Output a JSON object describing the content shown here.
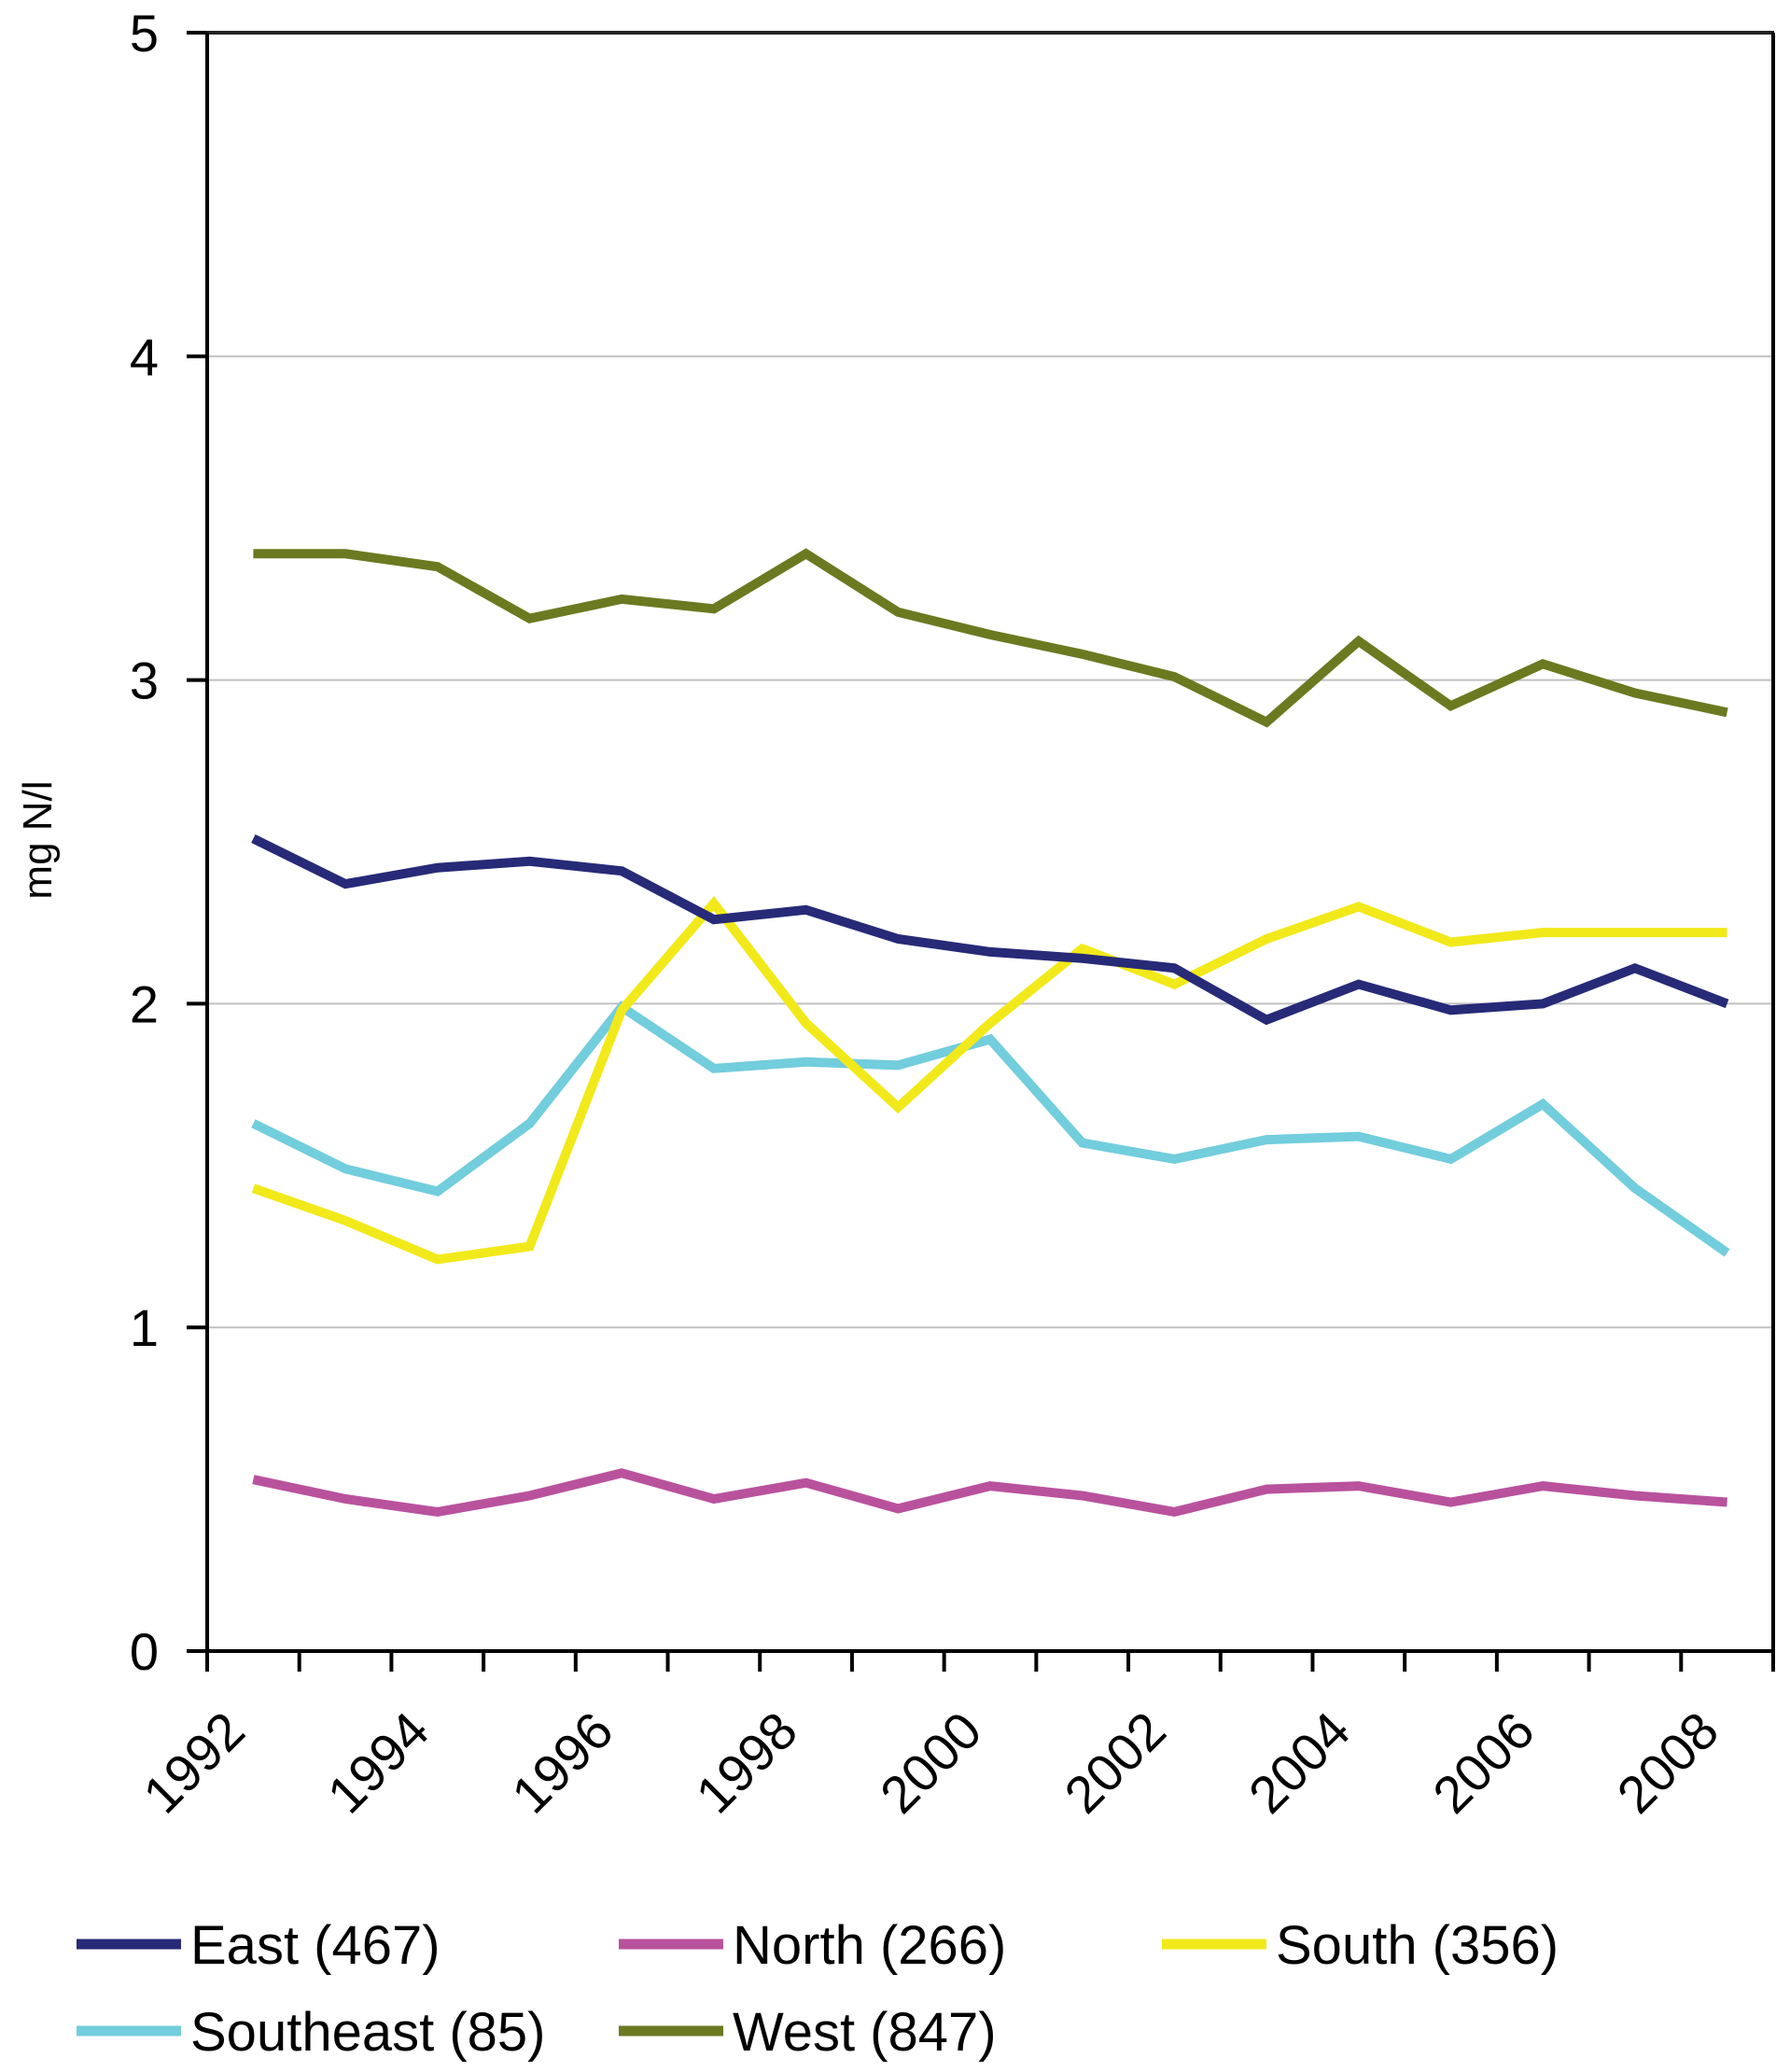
{
  "chart_data": {
    "type": "line",
    "title": "",
    "xlabel": "",
    "ylabel": "mg N/l",
    "ylim": [
      0,
      5
    ],
    "yticks": [
      0,
      1,
      2,
      3,
      4,
      5
    ],
    "ytick_labels": [
      "0",
      "1",
      "2",
      "3",
      "4",
      "5"
    ],
    "grid": "horizontal",
    "x": [
      1992,
      1993,
      1994,
      1995,
      1996,
      1997,
      1998,
      1999,
      2000,
      2001,
      2002,
      2003,
      2004,
      2005,
      2006,
      2007,
      2008
    ],
    "xtick_labels": [
      "1992",
      "1994",
      "1996",
      "1998",
      "2000",
      "2002",
      "2004",
      "2006",
      "2008"
    ],
    "legend_position": "bottom",
    "series": [
      {
        "name": "East (467)",
        "color": "#272a77",
        "values": [
          2.51,
          2.37,
          2.42,
          2.44,
          2.41,
          2.26,
          2.29,
          2.2,
          2.16,
          2.14,
          2.11,
          1.95,
          2.06,
          1.98,
          2.0,
          2.11,
          2.0
        ]
      },
      {
        "name": "North (266)",
        "color": "#b9529d",
        "values": [
          0.53,
          0.47,
          0.43,
          0.48,
          0.55,
          0.47,
          0.52,
          0.44,
          0.51,
          0.48,
          0.43,
          0.5,
          0.51,
          0.46,
          0.51,
          0.48,
          0.46
        ]
      },
      {
        "name": "South (356)",
        "color": "#f2e91a",
        "values": [
          1.43,
          1.33,
          1.21,
          1.25,
          1.98,
          2.31,
          1.94,
          1.68,
          1.94,
          2.17,
          2.06,
          2.2,
          2.3,
          2.19,
          2.22,
          2.22,
          2.22
        ]
      },
      {
        "name": "Southeast (85)",
        "color": "#72cddc",
        "values": [
          1.63,
          1.49,
          1.42,
          1.63,
          1.99,
          1.8,
          1.82,
          1.81,
          1.89,
          1.57,
          1.52,
          1.58,
          1.59,
          1.52,
          1.69,
          1.43,
          1.23
        ]
      },
      {
        "name": "West (847)",
        "color": "#6b7a21",
        "values": [
          3.39,
          3.39,
          3.35,
          3.19,
          3.25,
          3.22,
          3.39,
          3.21,
          3.14,
          3.08,
          3.01,
          2.87,
          3.12,
          2.92,
          3.05,
          2.96,
          2.9
        ]
      }
    ],
    "legend_order": [
      0,
      1,
      2,
      3,
      4
    ]
  }
}
